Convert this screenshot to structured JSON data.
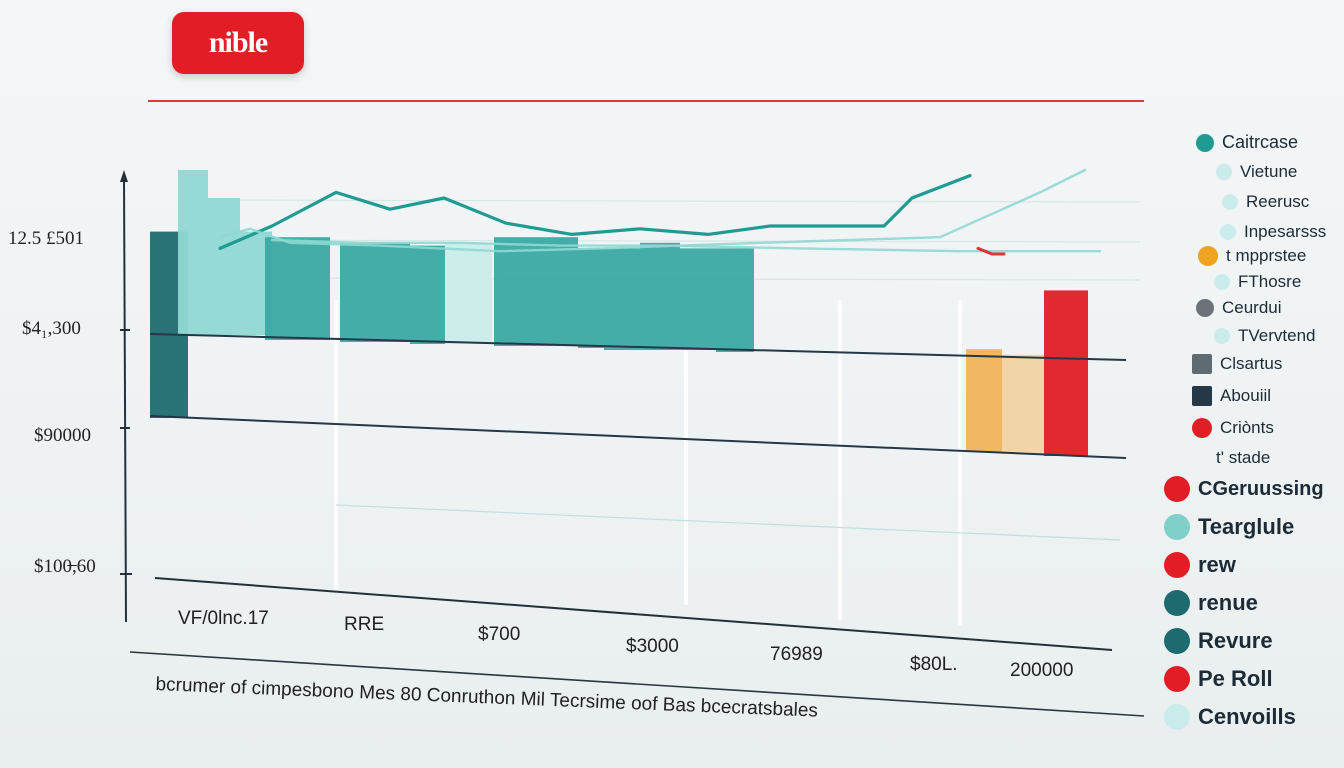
{
  "badge": {
    "text": "nible",
    "color": "#e21d25"
  },
  "caption": "bcrumer of cimpesbono Mes 80 Conruthon Mil Tecrsime oof Bas bcecratsbales",
  "colors": {
    "teal_dark": "#1d6a6f",
    "teal": "#26a5a2",
    "teal_light": "#8fd8d3",
    "wash": "#c9ecea",
    "red": "#e21d25",
    "orange": "#f0b35a",
    "navy": "#243847"
  },
  "legend": [
    {
      "label": "Caitrcase",
      "marker": "circle",
      "color": "#1f9b93"
    },
    {
      "label": "Vietune",
      "marker": "circle",
      "color": "#c9ecea"
    },
    {
      "label": "Reerusc",
      "marker": "circle",
      "color": "#c9ecea"
    },
    {
      "label": "Inpesarsss",
      "marker": "circle",
      "color": "#c9ecea"
    },
    {
      "label": "t mpprstee",
      "marker": "circle",
      "color": "#f0a320"
    },
    {
      "label": "FThosre",
      "marker": "circle",
      "color": "#c9ecea"
    },
    {
      "label": "Ceurdui",
      "marker": "circle",
      "color": "#6c7378"
    },
    {
      "label": "TVervtend",
      "marker": "circle",
      "color": "#c9ecea"
    },
    {
      "label": "Clsartus",
      "marker": "square",
      "color": "#5e6b72"
    },
    {
      "label": "Abouiil",
      "marker": "square",
      "color": "#243847"
    },
    {
      "label": "Criònts",
      "marker": "circle",
      "color": "#e21d25"
    },
    {
      "label": "t' stade",
      "marker": "none",
      "color": "#ffffff"
    },
    {
      "label": "CGeruussing",
      "marker": "circle",
      "color": "#e21d25"
    },
    {
      "label": "Tearglule",
      "marker": "circle",
      "color": "#7fd0c9"
    },
    {
      "label": "rew",
      "marker": "circle",
      "color": "#e21d25"
    },
    {
      "label": "renue",
      "marker": "circle",
      "color": "#1d6a6f"
    },
    {
      "label": "Revure",
      "marker": "circle",
      "color": "#1d6a6f"
    },
    {
      "label": "Pe Roll",
      "marker": "circle",
      "color": "#e21d25"
    },
    {
      "label": "Cenvoills",
      "marker": "circle",
      "color": "#c9ecea"
    }
  ],
  "chart_data": {
    "type": "bar",
    "title": "",
    "xlabel": "",
    "ylabel": "",
    "y_tick_labels": [
      "12.5 £501",
      "$4₁,300",
      "$90000",
      "$100̶,60"
    ],
    "x_tick_labels": [
      "VF/0lnc.17",
      "RRE",
      "$700",
      "$3000",
      "76989",
      "$80L.",
      "200000"
    ],
    "ylim": [
      0,
      100
    ],
    "grid": true,
    "bars": [
      {
        "value": 78,
        "color": "#1d6a6f"
      },
      {
        "value": 100,
        "color": "#8fd8d3"
      },
      {
        "value": 90,
        "color": "#8fd8d3"
      },
      {
        "value": 78,
        "color": "#8fd8d3"
      },
      {
        "value": 76,
        "color": "#3aa9a3"
      },
      {
        "value": 76,
        "color": "#3aa9a3"
      },
      {
        "value": 74,
        "color": "#3aa9a3"
      },
      {
        "value": 73,
        "color": "#3aa9a3"
      },
      {
        "value": 74,
        "color": "#c9ecea"
      },
      {
        "value": 76,
        "color": "#3aa9a3"
      },
      {
        "value": 72,
        "color": "#3aa9a3"
      },
      {
        "value": 72,
        "color": "#3aa9a3"
      },
      {
        "value": 74,
        "color": "#3aa9a3"
      },
      {
        "value": 72,
        "color": "#3aa9a3"
      },
      {
        "value": 72,
        "color": "#3aa9a3"
      },
      {
        "value": 36,
        "color": "#f0b35a"
      },
      {
        "value": 34,
        "color": "#f0d2a2"
      },
      {
        "value": 57,
        "color": "#e21d25"
      }
    ],
    "series": [
      {
        "color": "#1f9b93",
        "values": [
          72,
          80,
          92,
          86,
          90,
          81,
          77,
          79,
          77,
          80,
          80,
          90,
          98
        ]
      },
      {
        "color": "#8fd8d3",
        "values": [
          76,
          79,
          74,
          73,
          71,
          72,
          74,
          76,
          84,
          92,
          100
        ]
      },
      {
        "color": "#8fd8d3",
        "values": [
          75,
          74,
          74,
          73,
          73,
          72,
          71,
          71
        ]
      },
      {
        "color": "#e21d25",
        "values": [
          72,
          70,
          70
        ]
      }
    ]
  }
}
